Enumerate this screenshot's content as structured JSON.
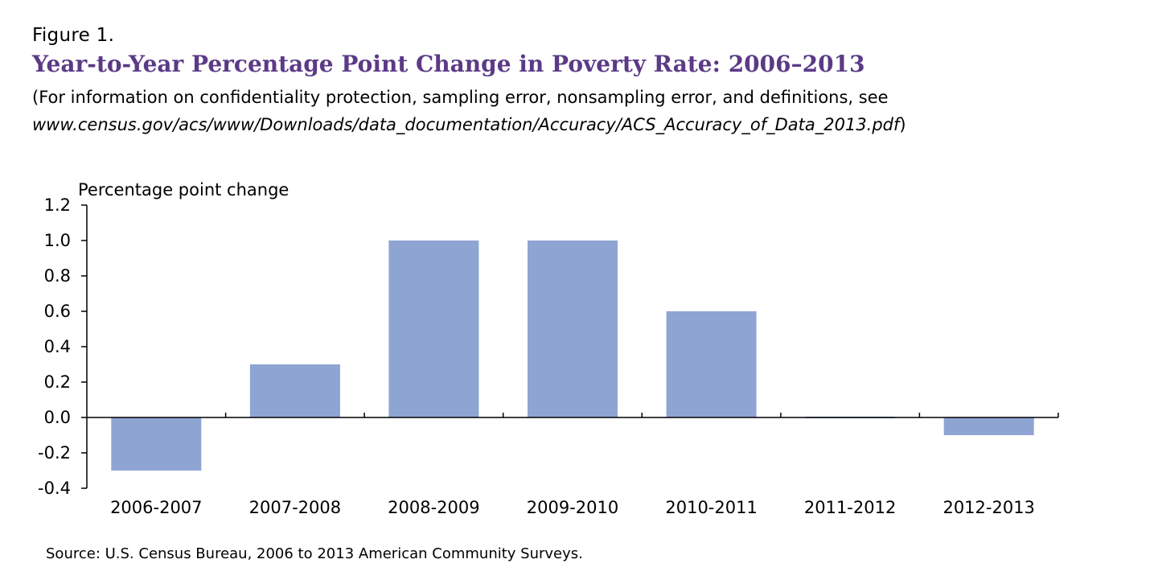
{
  "figure_label": "Figure 1.",
  "title": "Year-to-Year Percentage Point Change in Poverty Rate: 2006–2013",
  "note_line1": "(For information on confidentiality protection, sampling error, nonsampling error, and definitions, see",
  "note_url": "www.census.gov/acs/www/Downloads/data_documentation/Accuracy/ACS_Accuracy_of_Data_2013.pdf",
  "note_close": ")",
  "source": "Source: U.S. Census Bureau, 2006 to 2013 American Community Surveys.",
  "colors": {
    "bar": "#8ea5d3",
    "title": "#5b3a86",
    "axis": "#000000"
  },
  "chart_data": {
    "type": "bar",
    "title": "Year-to-Year Percentage Point Change in Poverty Rate: 2006–2013",
    "xlabel": "",
    "ylabel": "Percentage point change",
    "categories": [
      "2006-2007",
      "2007-2008",
      "2008-2009",
      "2009-2010",
      "2010-2011",
      "2011-2012",
      "2012-2013"
    ],
    "values": [
      -0.3,
      0.3,
      1.0,
      1.0,
      0.6,
      0.0,
      -0.1
    ],
    "ylim": [
      -0.4,
      1.2
    ],
    "yticks": [
      1.2,
      1.0,
      0.8,
      0.6,
      0.4,
      0.2,
      0.0,
      -0.2,
      -0.4
    ],
    "ytick_labels": [
      "1.2",
      "1.0",
      "0.8",
      "0.6",
      "0.4",
      "0.2",
      "0.0",
      "-0.2",
      "-0.4"
    ],
    "grid": false,
    "legend": "none"
  }
}
